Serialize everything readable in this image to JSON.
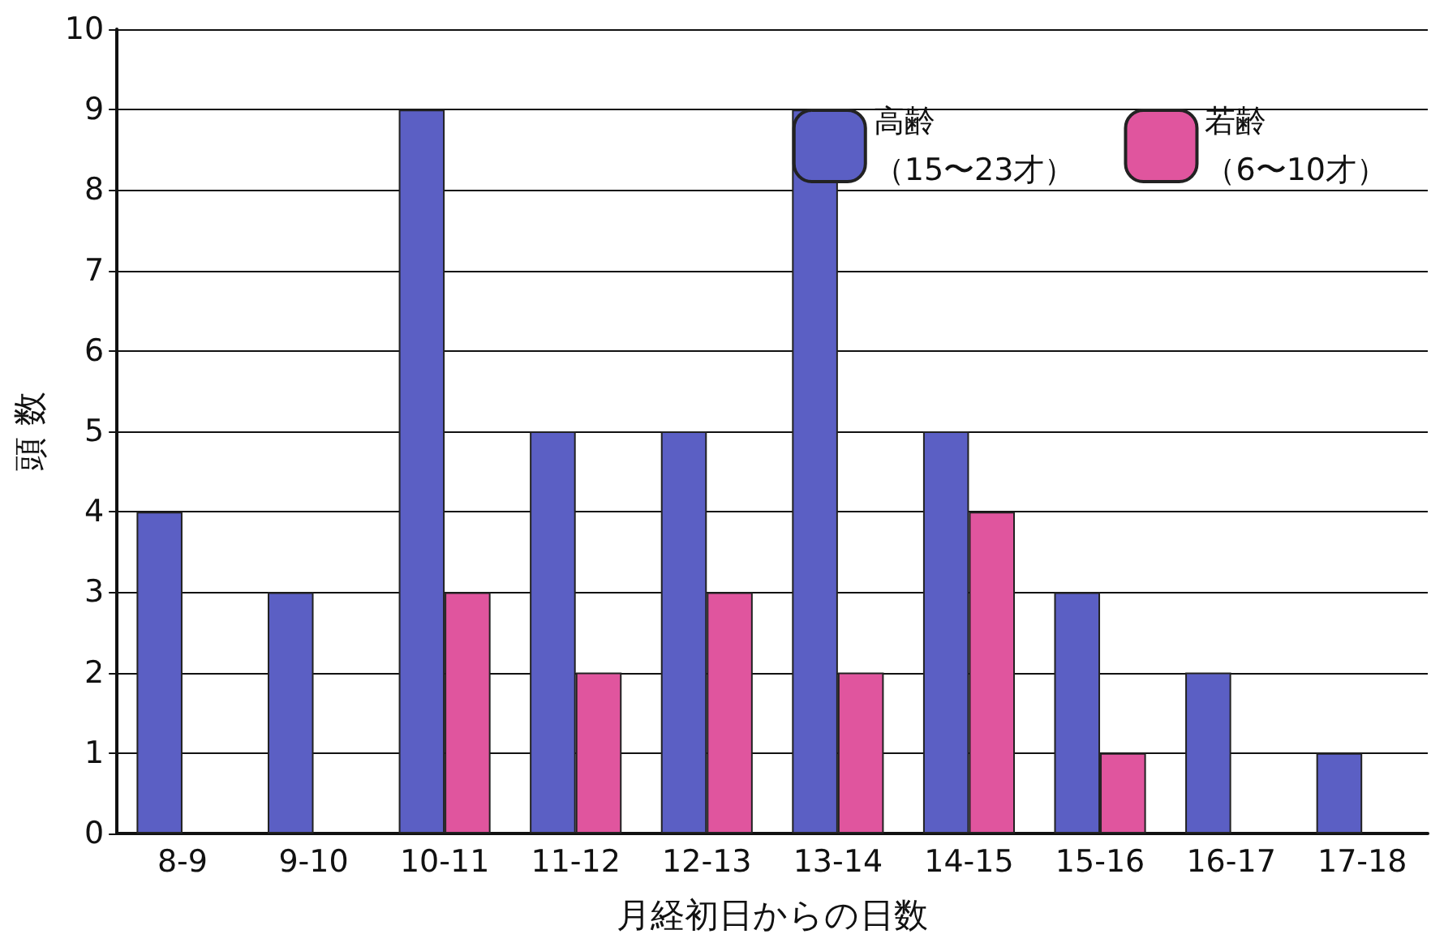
{
  "chart_data": {
    "type": "bar",
    "xlabel": "月経初日からの日数",
    "ylabel": "頭 数",
    "categories": [
      "8-9",
      "9-10",
      "10-11",
      "11-12",
      "12-13",
      "13-14",
      "14-15",
      "15-16",
      "16-17",
      "17-18"
    ],
    "series": [
      {
        "name": "高齢（15〜23才）",
        "color": "#5b5fc4",
        "values": [
          4,
          3,
          9,
          5,
          5,
          9,
          5,
          3,
          2,
          1
        ]
      },
      {
        "name": "若齢（6〜10才）",
        "color": "#e0559e",
        "values": [
          0,
          0,
          3,
          2,
          3,
          2,
          4,
          1,
          0,
          0
        ]
      }
    ],
    "ylim": [
      0,
      10
    ],
    "yticks": [
      0,
      1,
      2,
      3,
      4,
      5,
      6,
      7,
      8,
      9,
      10
    ],
    "grid": "y",
    "legend": "top right"
  }
}
